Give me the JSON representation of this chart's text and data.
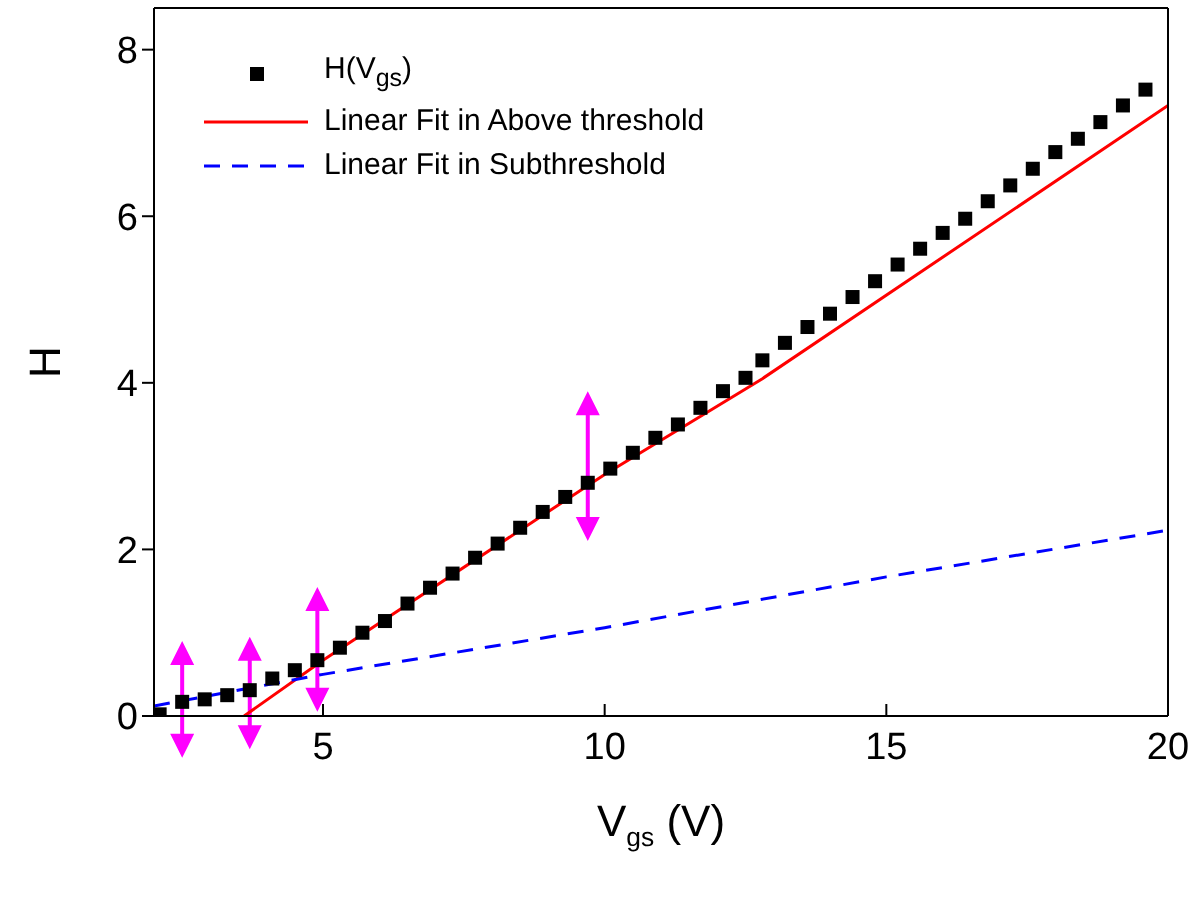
{
  "chart_data": {
    "type": "scatter",
    "xlabel": "V$_{gs}$ (V)",
    "ylabel": "H",
    "xlim": [
      2,
      20
    ],
    "ylim": [
      0,
      8.5
    ],
    "xticks": [
      5,
      10,
      15,
      20
    ],
    "yticks": [
      0,
      2,
      4,
      6,
      8
    ],
    "grid": false,
    "legend": "top left",
    "series": [
      {
        "name": "H(V$_{gs}$)",
        "marker": "square",
        "color": "#000000",
        "x": [
          2.1,
          2.5,
          2.9,
          3.3,
          3.7,
          4.1,
          4.5,
          4.9,
          5.3,
          5.7,
          6.1,
          6.5,
          6.9,
          7.3,
          7.7,
          8.1,
          8.5,
          8.9,
          9.3,
          9.7,
          10.1,
          10.5,
          10.9,
          11.3,
          11.7,
          12.1,
          12.5,
          12.8,
          13.2,
          13.6,
          14.0,
          14.4,
          14.8,
          15.2,
          15.6,
          16.0,
          16.4,
          16.8,
          17.2,
          17.6,
          18.0,
          18.4,
          18.8,
          19.2,
          19.6
        ],
        "values": [
          0.02,
          0.17,
          0.2,
          0.25,
          0.31,
          0.45,
          0.55,
          0.67,
          0.82,
          1.0,
          1.14,
          1.35,
          1.54,
          1.71,
          1.9,
          2.07,
          2.26,
          2.45,
          2.63,
          2.8,
          2.97,
          3.16,
          3.34,
          3.5,
          3.7,
          3.9,
          4.06,
          4.27,
          4.48,
          4.67,
          4.83,
          5.03,
          5.22,
          5.42,
          5.61,
          5.8,
          5.97,
          6.18,
          6.37,
          6.57,
          6.77,
          6.93,
          7.13,
          7.33,
          7.52
        ]
      },
      {
        "name": "Linear Fit in Above threshold",
        "type": "line",
        "line_style": "solid",
        "color": "#ff0000",
        "x": [
          3.6,
          5,
          10,
          12.8,
          20
        ],
        "values": [
          0,
          0.67,
          2.9,
          4.05,
          7.33
        ]
      },
      {
        "name": "Linear Fit in Subthreshold",
        "type": "line",
        "line_style": "dashed",
        "color": "#0000ff",
        "x": [
          2,
          5,
          10,
          15,
          20
        ],
        "values": [
          0.12,
          0.5,
          1.06,
          1.67,
          2.23
        ]
      }
    ]
  }
}
